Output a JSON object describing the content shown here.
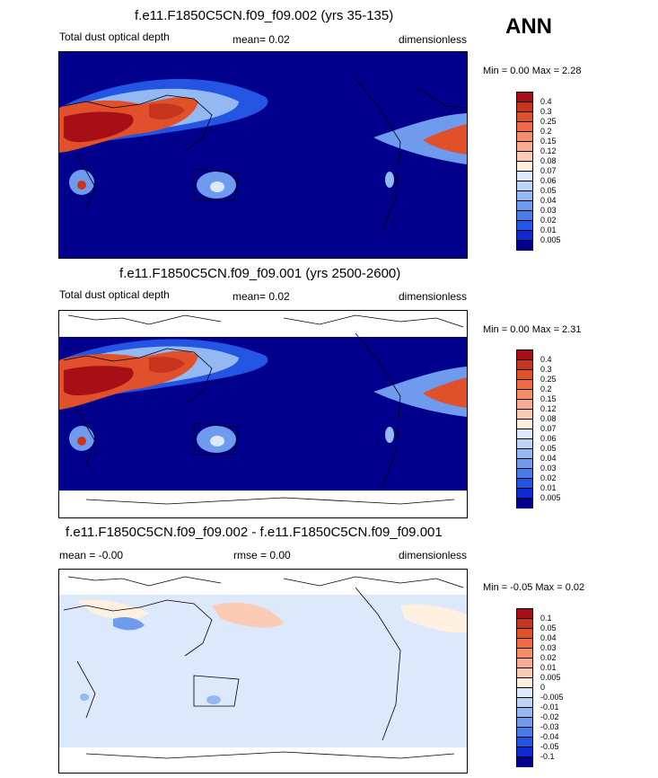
{
  "header": {
    "season": "ANN"
  },
  "colors": {
    "ocean_dark": "#00008c",
    "coast": "#000000"
  },
  "chart_data": [
    {
      "type": "heatmap",
      "title": "f.e11.F1850C5CN.f09_f09.002 (yrs 35-135)",
      "left_label": "Total dust optical depth",
      "mean_text": "mean=  0.02",
      "right_label": "dimensionless",
      "minmax_text": "Min =   0.00 Max =   2.28",
      "min": 0.0,
      "max": 2.28,
      "levels": [
        "0.4",
        "0.3",
        "0.25",
        "0.2",
        "0.15",
        "0.12",
        "0.08",
        "0.07",
        "0.06",
        "0.05",
        "0.04",
        "0.03",
        "0.02",
        "0.01",
        "0.005"
      ],
      "colors": [
        "#a50f15",
        "#c8351e",
        "#e0502b",
        "#ef6a43",
        "#f58c6a",
        "#f9ab8f",
        "#fccbb5",
        "#fff0e0",
        "#dbe9fb",
        "#bcd4f7",
        "#93b8f2",
        "#6f9bee",
        "#4a7ce8",
        "#2454e2",
        "#0d2bd0",
        "#00008c"
      ]
    },
    {
      "type": "heatmap",
      "title": "f.e11.F1850C5CN.f09_f09.001 (yrs 2500-2600)",
      "left_label": "Total dust optical depth",
      "mean_text": "mean=  0.02",
      "right_label": "dimensionless",
      "minmax_text": "Min =   0.00 Max =   2.31",
      "min": 0.0,
      "max": 2.31,
      "levels": [
        "0.4",
        "0.3",
        "0.25",
        "0.2",
        "0.15",
        "0.12",
        "0.08",
        "0.07",
        "0.06",
        "0.05",
        "0.04",
        "0.03",
        "0.02",
        "0.01",
        "0.005"
      ],
      "colors": [
        "#a50f15",
        "#c8351e",
        "#e0502b",
        "#ef6a43",
        "#f58c6a",
        "#f9ab8f",
        "#fccbb5",
        "#fff0e0",
        "#dbe9fb",
        "#bcd4f7",
        "#93b8f2",
        "#6f9bee",
        "#4a7ce8",
        "#2454e2",
        "#0d2bd0",
        "#00008c"
      ]
    },
    {
      "type": "heatmap",
      "title": "f.e11.F1850C5CN.f09_f09.002 - f.e11.F1850C5CN.f09_f09.001",
      "left_label": "mean =  -0.00",
      "mean_text": "rmse =   0.00",
      "right_label": "dimensionless",
      "minmax_text": "Min =  -0.05 Max =   0.02",
      "min": -0.05,
      "max": 0.02,
      "levels": [
        "0.1",
        "0.05",
        "0.04",
        "0.03",
        "0.02",
        "0.01",
        "0.005",
        "0",
        "-0.005",
        "-0.01",
        "-0.02",
        "-0.03",
        "-0.04",
        "-0.05",
        "-0.1"
      ],
      "colors": [
        "#a50f15",
        "#c8351e",
        "#e0502b",
        "#ef6a43",
        "#f58c6a",
        "#f9ab8f",
        "#fccbb5",
        "#fff0e0",
        "#dbe9fb",
        "#bcd4f7",
        "#93b8f2",
        "#6f9bee",
        "#4a7ce8",
        "#2454e2",
        "#0d2bd0",
        "#00008c"
      ]
    }
  ]
}
